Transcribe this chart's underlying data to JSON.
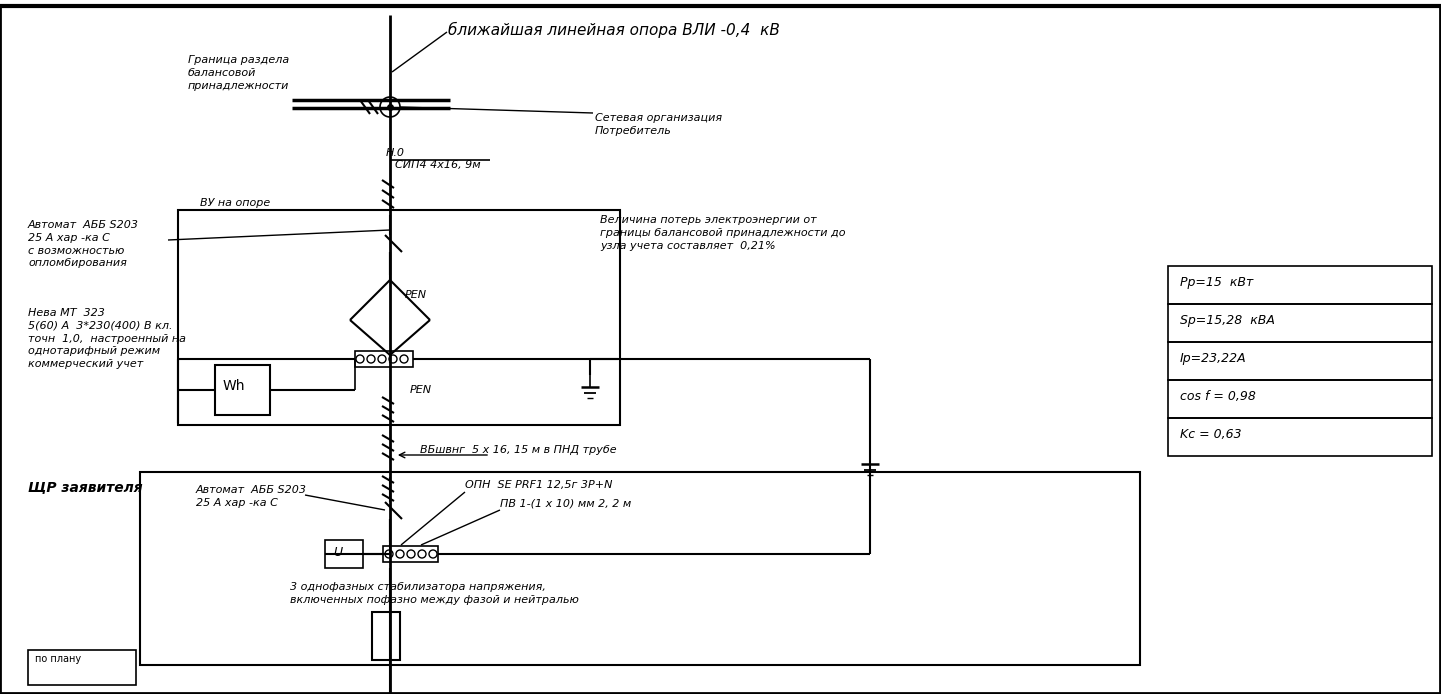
{
  "bg_color": "#ffffff",
  "title_text": "ближайшая линейная опора ВЛИ -0,4  кВ",
  "annotation_balance": "Граница раздела\nбалансовой\nпринадлежности",
  "annotation_network": "Сетевая организация\nПотребитель",
  "annotation_vu": "ВУ на опоре",
  "annotation_cable1_top": "Н.0",
  "annotation_cable1_bot": "СИП4 4x16, 9м",
  "annotation_losses": "Величина потерь электроэнергии от\nграницы балансовой принадлежности до\nузла учета составляет  0,21%",
  "annotation_avtomat1": "Автомат  АББ S203\n25 А хар -ка C\nс возможностью\nопломбирования",
  "annotation_neva": "Нева МТ  323\n5(60) А  3*230(400) В кл.\nточн  1,0,  настроенный на\nоднотарифный режим\nкоммерческий учет",
  "annotation_cable2": "ВБшвнг  5 x 16, 15 м в ПНД трубе",
  "annotation_shchp": "ЩР заявителя",
  "annotation_avtomat2": "Автомат  АББ S203\n25 А хар -ка C",
  "annotation_opn": "ОПН  SE PRF1 12,5г 3P+N",
  "annotation_pv": "ПВ 1-(1 x 10) мм 2, 2 м",
  "annotation_stab": "3 однофазных стабилизатора напряжения,\nвключенных пофазно между фазой и нейтралью",
  "table_rows": [
    "Pp=15  кВт",
    "Sp=15,28  кВА",
    "Ip=23,22A",
    "cos f = 0,98",
    "Kc = 0,63"
  ],
  "pen_label": "PEN",
  "wh_label": "Wh",
  "u_label": "U",
  "po_planu": "по плану"
}
